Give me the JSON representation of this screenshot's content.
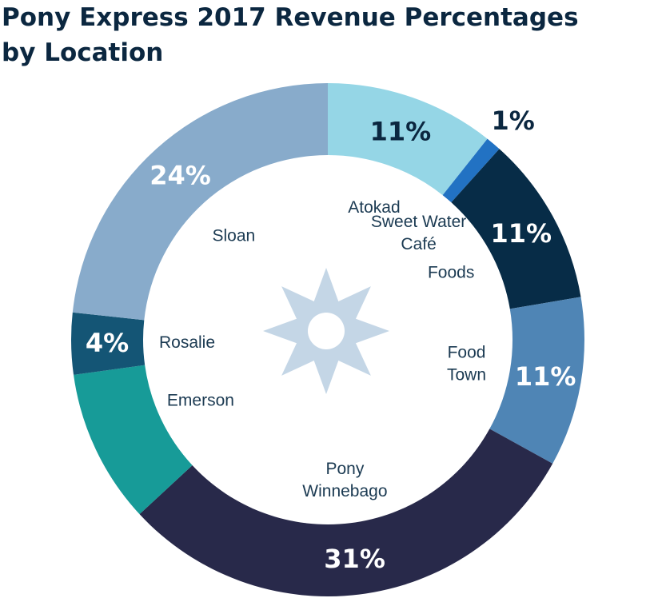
{
  "chart_data": {
    "type": "pie",
    "title": "Pony Express 2017 Revenue Percentages by Location",
    "title_lines": [
      "Pony Express 2017 Revenue Percentages",
      "by Location"
    ],
    "center_icon": "star-burst-icon",
    "slices": [
      {
        "category": "Atokad",
        "category_lines": [
          "Atokad"
        ],
        "value": 11,
        "label": "11%",
        "color": "#95d6e6",
        "label_color": "#0b2740"
      },
      {
        "category": "Sweet Water Café",
        "category_lines": [
          "Sweet Water",
          "Café"
        ],
        "value": 1,
        "label": "1%",
        "color": "#2272c3",
        "label_color": "#0b2740"
      },
      {
        "category": "Foods",
        "category_lines": [
          "Foods"
        ],
        "value": 11,
        "label": "11%",
        "color": "#072c47",
        "label_color": "#ffffff"
      },
      {
        "category": "Food Town",
        "category_lines": [
          "Food",
          "Town"
        ],
        "value": 11,
        "label": "11%",
        "color": "#4f85b5",
        "label_color": "#ffffff"
      },
      {
        "category": "Pony Winnebago",
        "category_lines": [
          "Pony",
          "Winnebago"
        ],
        "value": 31,
        "label": "31%",
        "color": "#28294a",
        "label_color": "#ffffff"
      },
      {
        "category": "Emerson",
        "category_lines": [
          "Emerson"
        ],
        "value": 10,
        "label": "",
        "color": "#179b98",
        "label_color": "#ffffff"
      },
      {
        "category": "Rosalie",
        "category_lines": [
          "Rosalie"
        ],
        "value": 4,
        "label": "4%",
        "color": "#145575",
        "label_color": "#ffffff"
      },
      {
        "category": "Sloan",
        "category_lines": [
          "Sloan"
        ],
        "value": 24,
        "label": "24%",
        "color": "#88abcb",
        "label_color": "#ffffff"
      }
    ]
  }
}
